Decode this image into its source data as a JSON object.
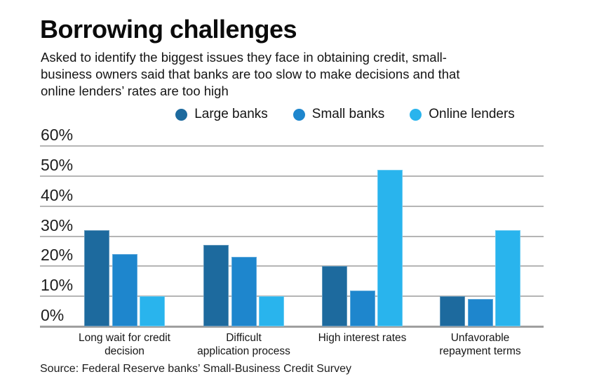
{
  "chart_data": {
    "type": "bar",
    "title": "Borrowing challenges",
    "subtitle": "Asked to identify the biggest issues they face in obtaining credit, small-\nbusiness owners said that banks are too slow to make decisions and that\nonline lenders’ rates are too high",
    "source": "Source: Federal Reserve banks’ Small-Business Credit Survey",
    "categories": [
      "Long wait for credit decision",
      "Difficult application process",
      "High interest rates",
      "Unfavorable repayment terms"
    ],
    "category_label_lines": [
      "Long wait for credit\ndecision",
      "Difficult\napplication process",
      "High interest rates",
      "Unfavorable\nrepayment terms"
    ],
    "series": [
      {
        "name": "Large banks",
        "color": "#1d6a9e",
        "values": [
          32,
          27,
          20,
          10
        ]
      },
      {
        "name": "Small banks",
        "color": "#1e86cd",
        "values": [
          24,
          23,
          12,
          9
        ]
      },
      {
        "name": "Online lenders",
        "color": "#29b4ed",
        "values": [
          10,
          10,
          52,
          32
        ]
      }
    ],
    "y_axis": {
      "ticks": [
        0,
        10,
        20,
        30,
        40,
        50,
        60
      ],
      "tick_suffix": "%",
      "ylim": [
        0,
        60
      ],
      "grid": true
    },
    "legend_position": "top",
    "grid_color": "#b5b5b5",
    "axis_line_color": "#9f9f9f",
    "text_color": "#141414",
    "background_color": "#ffffff"
  }
}
